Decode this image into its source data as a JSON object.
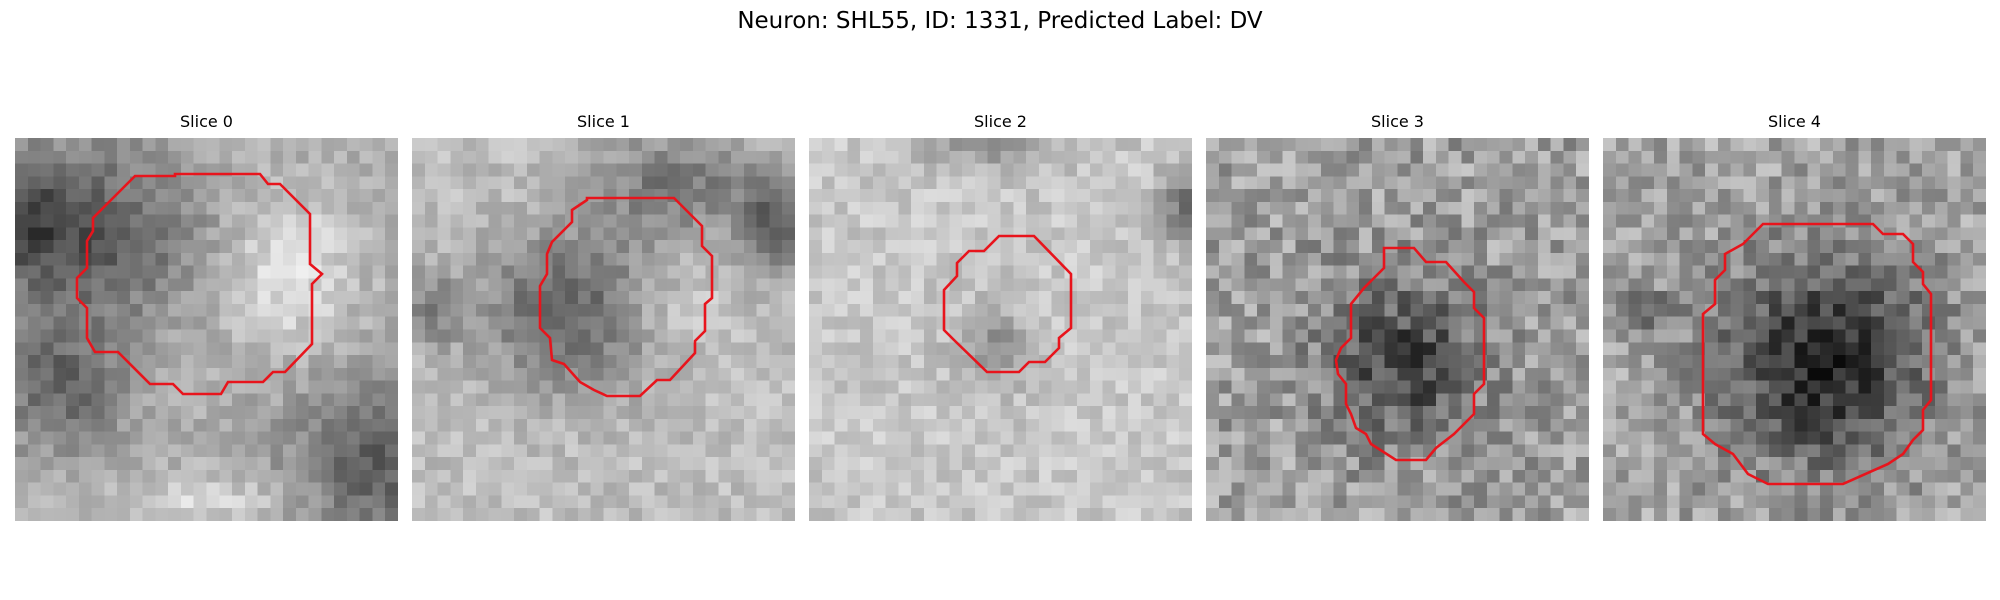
{
  "figure": {
    "title": "Neuron: SHL55, ID: 1331, Predicted Label: DV",
    "contour_color": "#e8141c"
  },
  "panels": [
    {
      "title": "Slice 0"
    },
    {
      "title": "Slice 1"
    },
    {
      "title": "Slice 2"
    },
    {
      "title": "Slice 3"
    },
    {
      "title": "Slice 4"
    }
  ]
}
